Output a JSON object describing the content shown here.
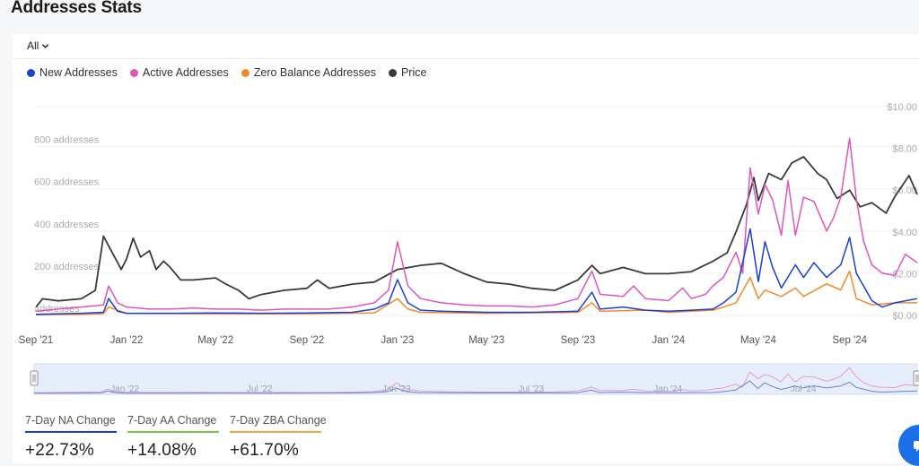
{
  "page": {
    "title": "Addresses Stats"
  },
  "filter": {
    "selected": "All"
  },
  "legend": [
    {
      "label": "New Addresses",
      "color": "#1a3fd6"
    },
    {
      "label": "Active Addresses",
      "color": "#e055b9"
    },
    {
      "label": "Zero Balance Addresses",
      "color": "#f08a2c"
    },
    {
      "label": "Price",
      "color": "#3a3a3a"
    }
  ],
  "navigator": {
    "labels": [
      "Jan '22",
      "Jul '22",
      "Jan '23",
      "Jul '23",
      "Jan '24",
      "Jul '24"
    ]
  },
  "stats": [
    {
      "label": "7-Day NA Change",
      "value": "+22.73%",
      "color": "#1a3fd6"
    },
    {
      "label": "7-Day AA Change",
      "value": "+14.08%",
      "color": "#7ac943"
    },
    {
      "label": "7-Day ZBA Change",
      "value": "+61.70%",
      "color": "#f3a63b"
    }
  ],
  "chart_data": {
    "type": "line",
    "x_start": "2021-09",
    "x_end": "2024-12",
    "x_tick_labels": [
      "Sep '21",
      "Jan '22",
      "May '22",
      "Sep '22",
      "Jan '23",
      "May '23",
      "Sep '23",
      "Jan '24",
      "May '24",
      "Sep '24"
    ],
    "y_left": {
      "ticks": [
        0,
        200,
        400,
        600,
        800
      ],
      "tick_labels": [
        "addresses",
        "200 addresses",
        "400 addresses",
        "600 addresses",
        "800 addresses"
      ],
      "ylim": [
        0,
        1000
      ]
    },
    "y_right": {
      "ticks": [
        0,
        2,
        4,
        6,
        8,
        10
      ],
      "tick_labels": [
        "$0.00",
        "$2.00",
        "$4.00",
        "$6.00",
        "$8.00",
        "$10.00"
      ],
      "ylim": [
        0,
        10
      ]
    },
    "grid": true,
    "legend_position": "top-left",
    "series": [
      {
        "name": "Active Addresses",
        "color": "#e055b9",
        "axis": "left",
        "x": [
          "2021-09",
          "2021-10",
          "2021-11",
          "2021-12",
          "2021-12-08",
          "2021-12-20",
          "2022-01",
          "2022-02",
          "2022-03",
          "2022-04",
          "2022-05",
          "2022-06",
          "2022-07",
          "2022-08",
          "2022-09",
          "2022-10",
          "2022-11",
          "2022-12",
          "2022-12-20",
          "2023-01",
          "2023-01-15",
          "2023-02",
          "2023-03",
          "2023-04",
          "2023-05",
          "2023-06",
          "2023-07",
          "2023-08",
          "2023-09",
          "2023-09-20",
          "2023-10",
          "2023-11",
          "2023-11-15",
          "2023-12",
          "2024-01",
          "2024-01-20",
          "2024-02",
          "2024-02-20",
          "2024-03",
          "2024-03-15",
          "2024-04",
          "2024-04-10",
          "2024-04-20",
          "2024-05",
          "2024-05-10",
          "2024-05-20",
          "2024-06",
          "2024-06-10",
          "2024-06-20",
          "2024-07",
          "2024-07-15",
          "2024-08",
          "2024-08-10",
          "2024-08-20",
          "2024-09",
          "2024-09-10",
          "2024-09-20",
          "2024-10",
          "2024-10-15",
          "2024-11",
          "2024-11-15",
          "2024-12"
        ],
        "values": [
          20,
          30,
          40,
          50,
          140,
          60,
          40,
          30,
          30,
          35,
          30,
          30,
          25,
          30,
          30,
          30,
          40,
          60,
          120,
          350,
          140,
          80,
          60,
          50,
          45,
          45,
          40,
          50,
          80,
          210,
          100,
          90,
          140,
          80,
          70,
          130,
          80,
          100,
          140,
          180,
          300,
          200,
          700,
          480,
          620,
          550,
          380,
          640,
          380,
          560,
          540,
          400,
          460,
          560,
          840,
          550,
          350,
          240,
          200,
          190,
          290,
          250
        ]
      },
      {
        "name": "New Addresses",
        "color": "#1a3fd6",
        "axis": "left",
        "x": [
          "2021-09",
          "2021-10",
          "2021-11",
          "2021-12",
          "2021-12-08",
          "2021-12-20",
          "2022-01",
          "2022-03",
          "2022-05",
          "2022-07",
          "2022-09",
          "2022-11",
          "2022-12",
          "2022-12-20",
          "2023-01",
          "2023-01-15",
          "2023-02",
          "2023-03",
          "2023-05",
          "2023-07",
          "2023-09",
          "2023-09-20",
          "2023-10",
          "2023-11",
          "2023-12",
          "2024-01",
          "2024-02",
          "2024-03",
          "2024-03-15",
          "2024-04",
          "2024-04-20",
          "2024-05",
          "2024-05-10",
          "2024-05-20",
          "2024-06",
          "2024-06-20",
          "2024-07",
          "2024-07-15",
          "2024-08",
          "2024-08-20",
          "2024-09",
          "2024-09-10",
          "2024-10",
          "2024-10-15",
          "2024-11",
          "2024-12"
        ],
        "values": [
          5,
          8,
          10,
          15,
          80,
          20,
          10,
          10,
          12,
          10,
          12,
          15,
          30,
          60,
          170,
          60,
          25,
          20,
          15,
          15,
          20,
          110,
          30,
          40,
          25,
          20,
          25,
          30,
          60,
          110,
          410,
          160,
          350,
          230,
          130,
          240,
          180,
          250,
          180,
          240,
          370,
          200,
          70,
          40,
          60,
          80
        ]
      },
      {
        "name": "Zero Balance Addresses",
        "color": "#f08a2c",
        "axis": "left",
        "x": [
          "2021-09",
          "2021-11",
          "2021-12",
          "2021-12-08",
          "2022-01",
          "2022-05",
          "2022-09",
          "2022-12",
          "2023-01",
          "2023-01-15",
          "2023-02",
          "2023-05",
          "2023-09",
          "2023-09-20",
          "2023-10",
          "2023-12",
          "2024-01",
          "2024-02",
          "2024-03",
          "2024-03-15",
          "2024-04",
          "2024-04-20",
          "2024-05",
          "2024-05-10",
          "2024-06",
          "2024-06-20",
          "2024-07",
          "2024-08",
          "2024-08-20",
          "2024-09",
          "2024-09-10",
          "2024-10",
          "2024-11",
          "2024-12"
        ],
        "values": [
          3,
          5,
          8,
          40,
          10,
          8,
          8,
          12,
          80,
          30,
          15,
          10,
          15,
          60,
          20,
          25,
          15,
          20,
          25,
          40,
          60,
          180,
          80,
          120,
          90,
          130,
          90,
          150,
          120,
          210,
          80,
          50,
          60,
          60
        ]
      },
      {
        "name": "Price",
        "color": "#3a3a3a",
        "axis": "right",
        "x": [
          "2021-09",
          "2021-09-10",
          "2021-10",
          "2021-11",
          "2021-11-20",
          "2021-12",
          "2021-12-10",
          "2021-12-25",
          "2022-01",
          "2022-01-10",
          "2022-01-20",
          "2022-02",
          "2022-02-10",
          "2022-02-20",
          "2022-03",
          "2022-03-15",
          "2022-04",
          "2022-05",
          "2022-05-15",
          "2022-06",
          "2022-06-15",
          "2022-07",
          "2022-08",
          "2022-09",
          "2022-09-15",
          "2022-10",
          "2022-11",
          "2022-12",
          "2023-01",
          "2023-02",
          "2023-03",
          "2023-04",
          "2023-05",
          "2023-06",
          "2023-07",
          "2023-08",
          "2023-09",
          "2023-09-20",
          "2023-10",
          "2023-11",
          "2023-12",
          "2024-01",
          "2024-02",
          "2024-03",
          "2024-03-20",
          "2024-04",
          "2024-04-15",
          "2024-04-25",
          "2024-05",
          "2024-05-15",
          "2024-06",
          "2024-06-15",
          "2024-07",
          "2024-07-20",
          "2024-08",
          "2024-08-15",
          "2024-09",
          "2024-09-15",
          "2024-10",
          "2024-10-20",
          "2024-11",
          "2024-11-20",
          "2024-12"
        ],
        "values": [
          0.4,
          0.8,
          0.7,
          0.8,
          1.2,
          3.8,
          3.2,
          2.2,
          2.7,
          3.7,
          2.8,
          3.1,
          2.2,
          2.6,
          2.3,
          1.7,
          1.7,
          1.8,
          1.5,
          1.2,
          0.8,
          1.0,
          1.2,
          1.3,
          1.7,
          1.3,
          1.5,
          1.6,
          2.2,
          2.4,
          2.5,
          2.0,
          1.6,
          1.5,
          1.3,
          1.2,
          1.7,
          2.4,
          2.0,
          2.3,
          2.0,
          2.0,
          2.1,
          2.6,
          3.0,
          4.0,
          5.3,
          6.6,
          5.5,
          6.8,
          6.5,
          7.3,
          7.6,
          6.8,
          6.5,
          5.6,
          6.0,
          5.2,
          5.4,
          4.9,
          5.7,
          6.7,
          5.8
        ]
      }
    ]
  }
}
